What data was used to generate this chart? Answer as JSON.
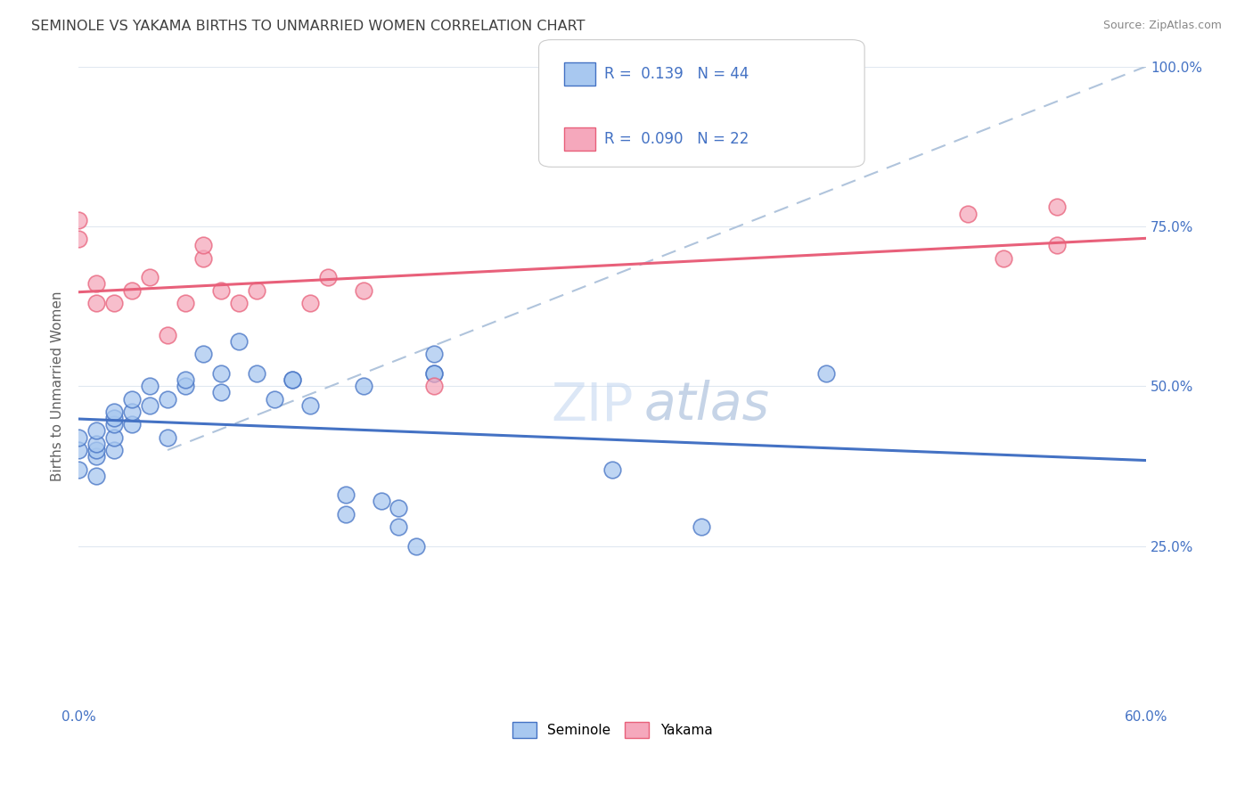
{
  "title": "SEMINOLE VS YAKAMA BIRTHS TO UNMARRIED WOMEN CORRELATION CHART",
  "source_text": "Source: ZipAtlas.com",
  "xlabel_seminole": "Seminole",
  "xlabel_yakama": "Yakama",
  "ylabel": "Births to Unmarried Women",
  "xlim": [
    0.0,
    0.6
  ],
  "ylim": [
    0.0,
    1.0
  ],
  "R_seminole": 0.139,
  "N_seminole": 44,
  "R_yakama": 0.09,
  "N_yakama": 22,
  "seminole_color": "#A8C8F0",
  "yakama_color": "#F5A8BC",
  "trend_seminole_color": "#4472C4",
  "trend_yakama_color": "#E8607A",
  "seminole_x": [
    0.0,
    0.0,
    0.0,
    0.01,
    0.01,
    0.01,
    0.01,
    0.01,
    0.02,
    0.02,
    0.02,
    0.02,
    0.02,
    0.03,
    0.03,
    0.03,
    0.04,
    0.04,
    0.05,
    0.05,
    0.06,
    0.06,
    0.07,
    0.08,
    0.08,
    0.09,
    0.1,
    0.11,
    0.12,
    0.12,
    0.13,
    0.15,
    0.15,
    0.16,
    0.17,
    0.18,
    0.18,
    0.19,
    0.2,
    0.2,
    0.2,
    0.3,
    0.35,
    0.42
  ],
  "seminole_y": [
    0.37,
    0.4,
    0.42,
    0.36,
    0.39,
    0.4,
    0.41,
    0.43,
    0.4,
    0.42,
    0.44,
    0.45,
    0.46,
    0.44,
    0.46,
    0.48,
    0.47,
    0.5,
    0.42,
    0.48,
    0.5,
    0.51,
    0.55,
    0.49,
    0.52,
    0.57,
    0.52,
    0.48,
    0.51,
    0.51,
    0.47,
    0.3,
    0.33,
    0.5,
    0.32,
    0.28,
    0.31,
    0.25,
    0.52,
    0.52,
    0.55,
    0.37,
    0.28,
    0.52
  ],
  "yakama_x": [
    0.0,
    0.0,
    0.01,
    0.01,
    0.02,
    0.03,
    0.04,
    0.05,
    0.06,
    0.07,
    0.07,
    0.08,
    0.09,
    0.1,
    0.13,
    0.14,
    0.16,
    0.2,
    0.5,
    0.52,
    0.55,
    0.55
  ],
  "yakama_y": [
    0.73,
    0.76,
    0.63,
    0.66,
    0.63,
    0.65,
    0.67,
    0.58,
    0.63,
    0.7,
    0.72,
    0.65,
    0.63,
    0.65,
    0.63,
    0.67,
    0.65,
    0.5,
    0.77,
    0.7,
    0.78,
    0.72
  ],
  "dashed_line": [
    [
      0.05,
      0.6
    ],
    [
      0.4,
      1.0
    ]
  ],
  "watermark_text": "ZIPatlas",
  "watermark_zip_color": "#C8D8F0",
  "watermark_atlas_color": "#C8D8F0",
  "background_color": "#FFFFFF",
  "grid_color": "#E0E8F0",
  "title_color": "#404040",
  "source_color": "#888888",
  "axis_label_color": "#4472C4",
  "ylabel_color": "#606060"
}
